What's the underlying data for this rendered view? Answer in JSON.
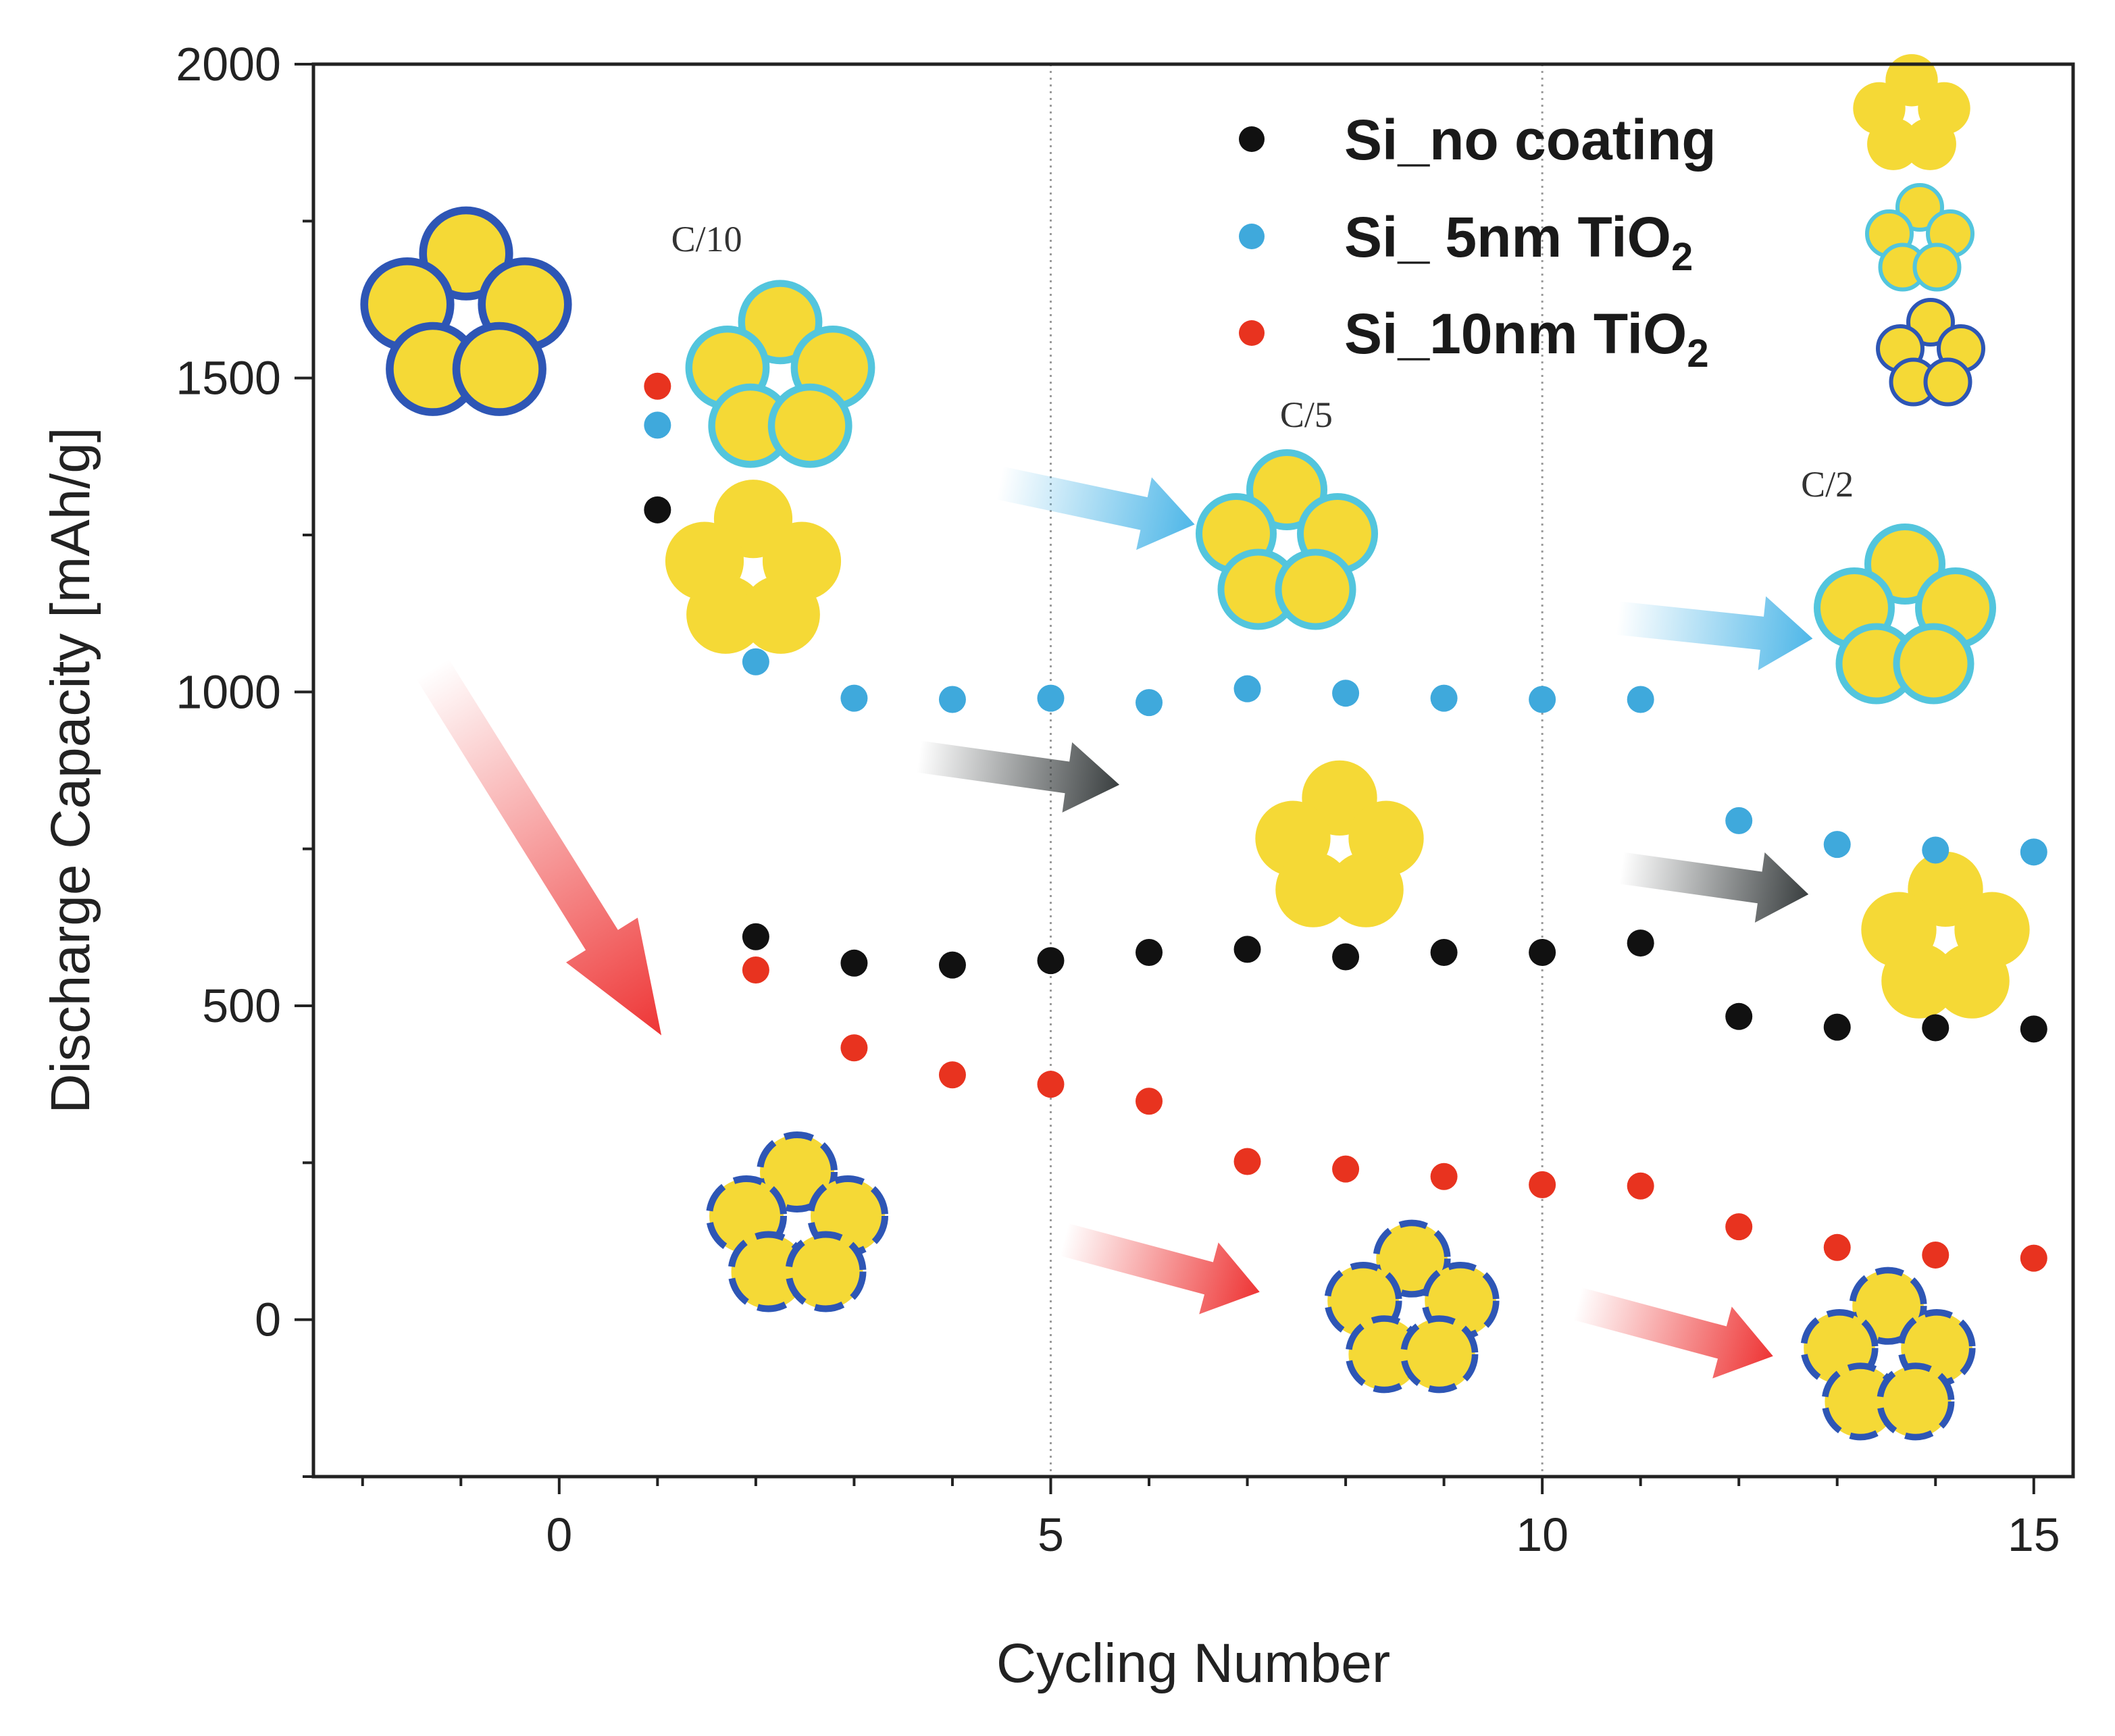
{
  "chart_data": {
    "type": "scatter",
    "title": "",
    "xlabel": "Cycling Number",
    "ylabel": "Discharge Capacity [mAh/g]",
    "xlim": [
      -2.5,
      15.4
    ],
    "ylim": [
      -250,
      2000
    ],
    "x_ticks": [
      0,
      5,
      10,
      15
    ],
    "y_ticks": [
      0,
      500,
      1000,
      1500,
      2000
    ],
    "grid": false,
    "legend_position": "top-right",
    "rate_regions": [
      {
        "label": "C/10",
        "x": 1.5
      },
      {
        "label": "C/5",
        "x": 7.6
      },
      {
        "label": "C/2",
        "x": 12.9
      }
    ],
    "series": [
      {
        "name": "Si_no coating",
        "legend_main": "Si_no coating",
        "legend_sub": "",
        "legend_tail": "",
        "color": "#111111",
        "shell_color": "#f5d936",
        "x": [
          1,
          2,
          3,
          4,
          5,
          6,
          7,
          8,
          9,
          10,
          11,
          12,
          13,
          14,
          15
        ],
        "values": [
          1290,
          610,
          568,
          565,
          572,
          585,
          590,
          578,
          585,
          585,
          600,
          483,
          466,
          465,
          463
        ]
      },
      {
        "name": "Si_ 5nm TiO2",
        "legend_main": "Si_ 5nm TiO",
        "legend_sub": "2",
        "legend_tail": "",
        "color": "#3fa9dc",
        "shell_color": "#53c5dd",
        "x": [
          1,
          2,
          3,
          4,
          5,
          6,
          7,
          8,
          9,
          10,
          11,
          12,
          13,
          14,
          15
        ],
        "values": [
          1425,
          1048,
          990,
          988,
          990,
          983,
          1005,
          998,
          990,
          988,
          988,
          795,
          757,
          748,
          745
        ]
      },
      {
        "name": "Si_10nm TiO2",
        "legend_main": "Si_10nm TiO",
        "legend_sub": "2",
        "legend_tail": "",
        "color": "#e8331f",
        "shell_color": "#2e56b5",
        "x": [
          1,
          2,
          3,
          4,
          5,
          6,
          7,
          8,
          9,
          10,
          11,
          12,
          13,
          14,
          15
        ],
        "values": [
          1487,
          557,
          433,
          390,
          375,
          348,
          252,
          240,
          228,
          215,
          213,
          148,
          115,
          103,
          98
        ]
      }
    ]
  }
}
